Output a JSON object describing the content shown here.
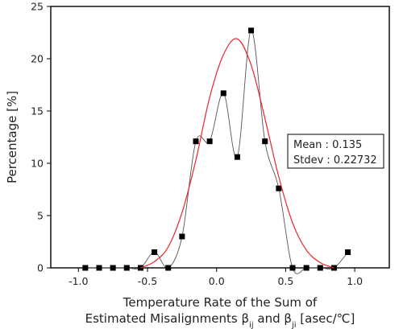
{
  "chart_data": {
    "type": "line",
    "title": "",
    "xlabel_line1": "Temperature Rate of the Sum of",
    "xlabel_line2_prefix": "Estimated Misalignments β",
    "xlabel_sub1": "ij",
    "xlabel_mid": " and β",
    "xlabel_sub2": "ji",
    "xlabel_suffix": " [asec/℃]",
    "ylabel": "Percentage [%]",
    "xlim": [
      -1.2,
      1.25
    ],
    "ylim": [
      0,
      25
    ],
    "x_ticks": [
      -1.0,
      -0.5,
      0.0,
      0.5,
      1.0
    ],
    "x_tick_labels": [
      "-1.0",
      "-0.5",
      "0.0",
      "0.5",
      "1.0"
    ],
    "y_ticks": [
      0,
      5,
      10,
      15,
      20,
      25
    ],
    "y_tick_labels": [
      "0",
      "5",
      "10",
      "15",
      "20",
      "25"
    ],
    "grid": false,
    "legend_box": {
      "placement": "right",
      "lines": [
        "Mean : 0.135",
        "Stdev : 0.22732"
      ]
    },
    "series": [
      {
        "style": "square-markers-with-smoothed-black-line",
        "color": "#000000",
        "x": [
          -0.95,
          -0.85,
          -0.75,
          -0.65,
          -0.55,
          -0.45,
          -0.35,
          -0.25,
          -0.15,
          -0.05,
          0.05,
          0.15,
          0.25,
          0.35,
          0.45,
          0.55,
          0.65,
          0.75,
          0.85,
          0.95
        ],
        "y": [
          0,
          0,
          0,
          0,
          0,
          1.5,
          0,
          3.0,
          12.1,
          12.1,
          16.7,
          10.6,
          22.7,
          12.1,
          7.6,
          0,
          0,
          0,
          0,
          1.5
        ]
      },
      {
        "style": "normal-fit-red-line",
        "color": "#e8262b",
        "x": [
          -0.55,
          -0.45,
          -0.35,
          -0.25,
          -0.15,
          -0.05,
          0.05,
          0.15,
          0.25,
          0.35,
          0.45,
          0.55,
          0.65,
          0.75,
          0.85
        ],
        "y": [
          0,
          0.6,
          2.0,
          5.3,
          10.3,
          16.3,
          20.4,
          21.9,
          19.4,
          14.3,
          8.7,
          4.3,
          1.7,
          0.5,
          0
        ]
      }
    ]
  }
}
